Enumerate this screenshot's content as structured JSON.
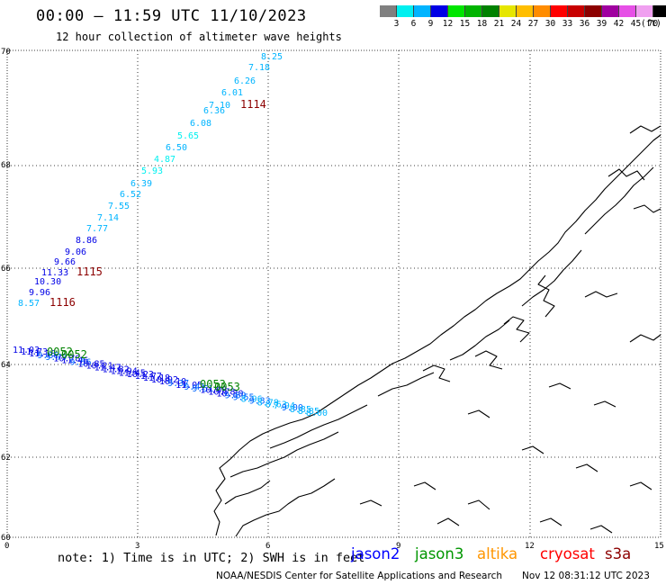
{
  "header": {
    "title": "00:00 – 11:59 UTC 11/10/2023",
    "subtitle": "12 hour collection of altimeter wave heights"
  },
  "colorbar": {
    "labels": [
      "3",
      "6",
      "9",
      "12",
      "15",
      "18",
      "21",
      "24",
      "27",
      "30",
      "33",
      "36",
      "39",
      "42",
      "45",
      "70"
    ],
    "unit": "(ft)",
    "colors": [
      "#808080",
      "#00f0f0",
      "#00b4ff",
      "#0000e6",
      "#00e600",
      "#00b400",
      "#008200",
      "#e6e600",
      "#ffbe00",
      "#ff8c00",
      "#ff0000",
      "#c80000",
      "#8c0000",
      "#a000a0",
      "#e650e6",
      "#f0a0f0",
      "#000000"
    ]
  },
  "map": {
    "x_axis_ticks": [
      "0",
      "3",
      "6",
      "9",
      "12",
      "15"
    ],
    "y_axis_ticks": [
      "70",
      "68",
      "66",
      "64",
      "62",
      "60"
    ],
    "track1_values": [
      "8.25",
      "7.18",
      "6.26",
      "6.01",
      "7.10",
      "6.36",
      "6.08",
      "5.65",
      "6.50",
      "4.87",
      "5.93",
      "6.39",
      "6.52",
      "7.55",
      "7.14",
      "7.77",
      "8.86",
      "9.06",
      "9.66",
      "11.33",
      "10.30",
      "9.96",
      "8.57"
    ],
    "time_labels": [
      "1114",
      "1115",
      "1116"
    ],
    "track2_values": [
      "11.03",
      "11.73",
      "11.10",
      "9.86",
      "9.79",
      "10.78",
      "11.46",
      "9.56",
      "10.85",
      "10.21",
      "11.47",
      "11.82",
      "11.94",
      "11.45",
      "10.23",
      "11.77",
      "11.18",
      "10.92",
      "10.10",
      "9.37",
      "11.05",
      "9.41",
      "9.51",
      "10.08",
      "10.78",
      "10.30",
      "9.89",
      "9.55",
      "8.96",
      "9.33",
      "8.78",
      "8.63",
      "7.94",
      "9.00",
      "8.85",
      "8.85",
      "8.00"
    ],
    "track2_codes": [
      "0052",
      "0052",
      "0053",
      "0053"
    ]
  },
  "footer": {
    "note": "note: 1) Time is in UTC; 2) SWH is in feet",
    "legend": [
      {
        "name": "jason2",
        "color": "#0000ff"
      },
      {
        "name": "jason3",
        "color": "#009600"
      },
      {
        "name": "altika",
        "color": "#ff9600"
      },
      {
        "name": "cryosat",
        "color": "#ff0000"
      },
      {
        "name": "s3a",
        "color": "#8c0000"
      }
    ],
    "credit": "NOAA/NESDIS Center for Satellite Applications and Research",
    "timestamp": "Nov 12 08:31:12 UTC 2023"
  }
}
